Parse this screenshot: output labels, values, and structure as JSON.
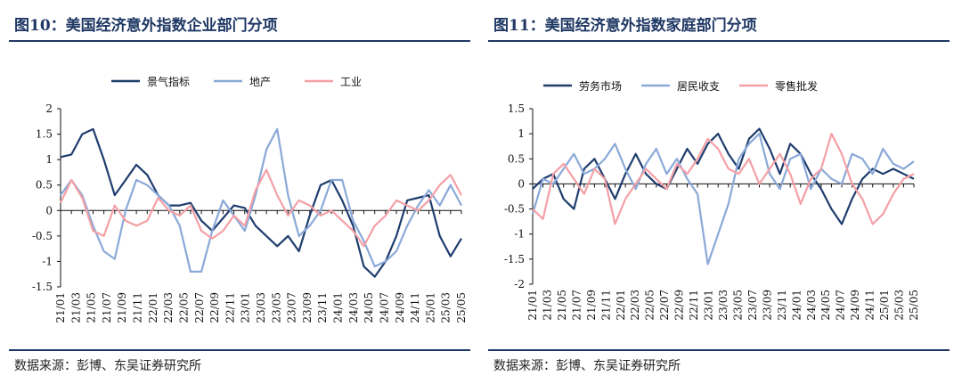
{
  "chart_data": [
    {
      "type": "line",
      "title": "图10：美国经济意外指数企业部门分项",
      "source": "数据来源：彭博、东吴证券研究所",
      "ylim": [
        -1.5,
        2
      ],
      "yticks": [
        "2",
        "1.5",
        "1",
        "0.5",
        "0",
        "-0.5",
        "-1",
        "-1.5"
      ],
      "ytick_values": [
        2,
        1.5,
        1,
        0.5,
        0,
        -0.5,
        -1,
        -1.5
      ],
      "xtick_labels": [
        "21/01",
        "21/03",
        "21/05",
        "21/07",
        "21/09",
        "21/11",
        "22/01",
        "22/03",
        "22/05",
        "22/07",
        "22/09",
        "22/11",
        "23/01",
        "23/03",
        "23/05",
        "23/07",
        "23/09",
        "23/11",
        "24/01",
        "24/03",
        "24/05",
        "24/07",
        "24/09",
        "24/11",
        "25/01",
        "25/03",
        "25/05"
      ],
      "legend_position": "top",
      "series": [
        {
          "name": "景气指标",
          "color": "#1f3d6e",
          "values": [
            1.05,
            1.1,
            1.5,
            1.6,
            1.0,
            0.3,
            0.6,
            0.9,
            0.7,
            0.3,
            0.1,
            0.1,
            0.15,
            -0.2,
            -0.4,
            -0.15,
            0.1,
            0.05,
            -0.3,
            -0.5,
            -0.7,
            -0.5,
            -0.8,
            -0.1,
            0.5,
            0.6,
            0.2,
            -0.3,
            -1.1,
            -1.3,
            -1.0,
            -0.5,
            0.2,
            0.25,
            0.3,
            -0.5,
            -0.9,
            -0.55
          ]
        },
        {
          "name": "地产",
          "color": "#8aa9d8",
          "values": [
            0.3,
            0.6,
            0.3,
            -0.3,
            -0.8,
            -0.95,
            0.0,
            0.6,
            0.5,
            0.3,
            0.1,
            -0.3,
            -1.2,
            -1.2,
            -0.4,
            0.2,
            -0.1,
            -0.4,
            0.3,
            1.2,
            1.6,
            0.3,
            -0.5,
            -0.3,
            0.0,
            0.6,
            0.6,
            -0.2,
            -0.6,
            -1.1,
            -1.0,
            -0.8,
            -0.3,
            0.1,
            0.4,
            0.1,
            0.5,
            0.1
          ]
        },
        {
          "name": "工业",
          "color": "#f4a0a6",
          "values": [
            0.15,
            0.6,
            0.25,
            -0.4,
            -0.5,
            0.1,
            -0.2,
            -0.3,
            -0.2,
            0.25,
            0.0,
            -0.1,
            0.1,
            -0.4,
            -0.55,
            -0.4,
            -0.1,
            -0.3,
            0.4,
            0.8,
            0.3,
            -0.1,
            0.2,
            0.1,
            -0.1,
            0.0,
            -0.2,
            -0.4,
            -0.7,
            -0.3,
            -0.1,
            0.2,
            0.1,
            0.0,
            0.2,
            0.5,
            0.7,
            0.3
          ]
        }
      ]
    },
    {
      "type": "line",
      "title": "图11：美国经济意外指数家庭部门分项",
      "source": "数据来源：彭博、东吴证券研究所",
      "ylim": [
        -2,
        1.5
      ],
      "yticks": [
        "1.5",
        "1",
        "0.5",
        "0",
        "-0.5",
        "-1",
        "-1.5",
        "-2"
      ],
      "ytick_values": [
        1.5,
        1,
        0.5,
        0,
        -0.5,
        -1,
        -1.5,
        -2
      ],
      "xtick_labels": [
        "21/01",
        "21/03",
        "21/05",
        "21/07",
        "21/09",
        "21/11",
        "22/01",
        "22/03",
        "22/05",
        "22/07",
        "22/09",
        "22/11",
        "23/01",
        "23/03",
        "23/05",
        "23/07",
        "23/09",
        "23/11",
        "24/01",
        "24/03",
        "24/05",
        "24/07",
        "24/09",
        "24/11",
        "25/01",
        "25/03",
        "25/05"
      ],
      "legend_position": "top",
      "series": [
        {
          "name": "劳务市场",
          "color": "#1f3d6e",
          "values": [
            -0.1,
            0.1,
            0.2,
            -0.3,
            -0.5,
            0.3,
            0.5,
            0.1,
            -0.3,
            0.2,
            0.6,
            0.2,
            0.0,
            -0.1,
            0.3,
            0.7,
            0.4,
            0.8,
            1.0,
            0.6,
            0.3,
            0.9,
            1.1,
            0.7,
            0.2,
            0.8,
            0.6,
            0.2,
            -0.1,
            -0.5,
            -0.8,
            -0.3,
            0.1,
            0.3,
            0.2,
            0.3,
            0.2,
            0.1
          ]
        },
        {
          "name": "居民收支",
          "color": "#8aa9d8",
          "values": [
            -0.6,
            0.1,
            0.0,
            0.3,
            0.6,
            0.2,
            0.3,
            0.5,
            0.8,
            0.3,
            -0.1,
            0.4,
            0.7,
            0.2,
            0.5,
            0.1,
            -0.2,
            -1.6,
            -1.0,
            -0.4,
            0.5,
            0.8,
            1.0,
            0.2,
            -0.1,
            0.5,
            0.6,
            -0.1,
            0.3,
            0.1,
            0.0,
            0.6,
            0.5,
            0.2,
            0.7,
            0.4,
            0.3,
            0.45
          ]
        },
        {
          "name": "零售批发",
          "color": "#f4a0a6",
          "values": [
            -0.5,
            -0.7,
            0.2,
            0.4,
            0.1,
            -0.2,
            0.3,
            0.1,
            -0.8,
            -0.3,
            0.0,
            0.3,
            0.1,
            -0.1,
            0.4,
            0.2,
            0.5,
            0.9,
            0.7,
            0.3,
            0.2,
            0.5,
            0.0,
            0.3,
            0.6,
            0.2,
            -0.4,
            0.1,
            0.3,
            1.0,
            0.6,
            0.0,
            -0.3,
            -0.8,
            -0.6,
            -0.2,
            0.1,
            0.2
          ]
        }
      ]
    }
  ]
}
